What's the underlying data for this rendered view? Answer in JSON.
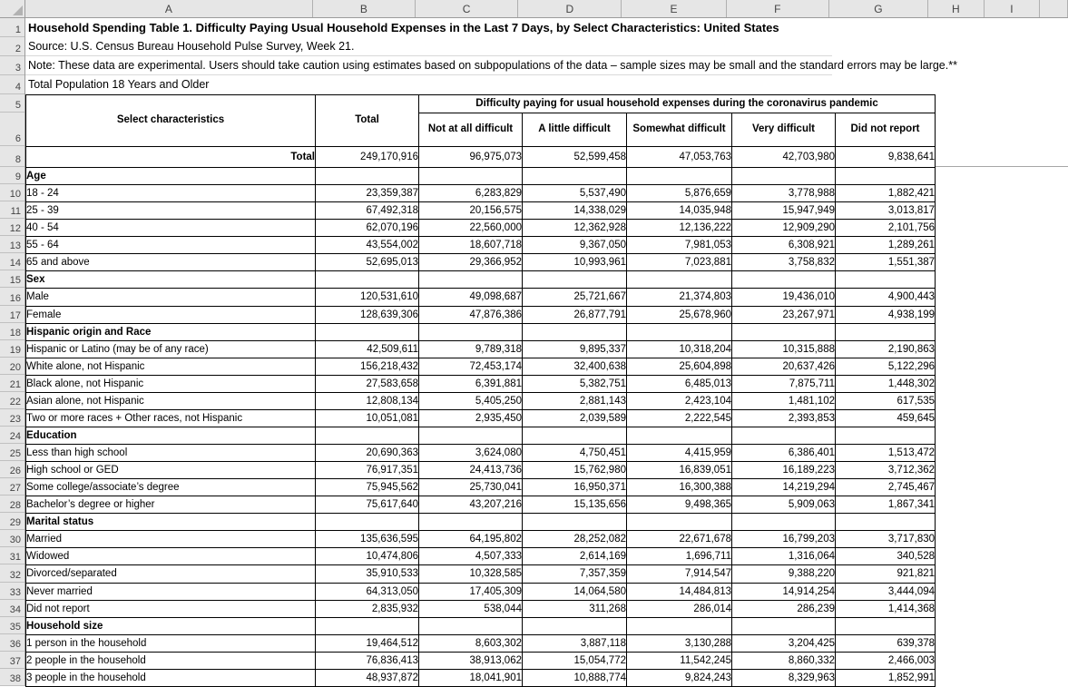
{
  "spreadsheet": {
    "column_letters": [
      "A",
      "B",
      "C",
      "D",
      "E",
      "F",
      "G",
      "H",
      "I"
    ],
    "row_numbers": [
      1,
      2,
      3,
      4,
      5,
      6,
      8,
      9,
      10,
      11,
      12,
      13,
      14,
      15,
      16,
      17,
      18,
      19,
      20,
      21,
      22,
      23,
      24,
      25,
      26,
      27,
      28,
      29,
      30,
      31,
      32,
      33,
      34,
      35,
      36,
      37,
      38
    ]
  },
  "meta": {
    "title": "Household Spending Table 1. Difficulty Paying Usual Household Expenses in the Last 7 Days, by Select Characteristics: United States",
    "source": "Source: U.S. Census Bureau Household Pulse Survey, Week 21.",
    "note": "Note: These data are experimental. Users should take caution using estimates based on subpopulations of the data – sample sizes may be small and the standard errors may be large.**",
    "population": "Total Population 18 Years and Older"
  },
  "table": {
    "col1_header": "Select characteristics",
    "total_header": "Total",
    "span_header": "Difficulty paying for usual household expenses during the coronavirus pandemic",
    "sub_headers": [
      "Not at all difficult",
      "A little difficult",
      "Somewhat difficult",
      "Very difficult",
      "Did not report"
    ],
    "rows": [
      {
        "type": "total",
        "label": "Total",
        "values": [
          "249,170,916",
          "96,975,073",
          "52,599,458",
          "47,053,763",
          "42,703,980",
          "9,838,641"
        ]
      },
      {
        "type": "section",
        "label": "Age"
      },
      {
        "type": "data",
        "label": "18 - 24",
        "values": [
          "23,359,387",
          "6,283,829",
          "5,537,490",
          "5,876,659",
          "3,778,988",
          "1,882,421"
        ]
      },
      {
        "type": "data",
        "label": "25 - 39",
        "values": [
          "67,492,318",
          "20,156,575",
          "14,338,029",
          "14,035,948",
          "15,947,949",
          "3,013,817"
        ]
      },
      {
        "type": "data",
        "label": "40 - 54",
        "values": [
          "62,070,196",
          "22,560,000",
          "12,362,928",
          "12,136,222",
          "12,909,290",
          "2,101,756"
        ]
      },
      {
        "type": "data",
        "label": "55 - 64",
        "values": [
          "43,554,002",
          "18,607,718",
          "9,367,050",
          "7,981,053",
          "6,308,921",
          "1,289,261"
        ]
      },
      {
        "type": "data",
        "label": "65 and above",
        "values": [
          "52,695,013",
          "29,366,952",
          "10,993,961",
          "7,023,881",
          "3,758,832",
          "1,551,387"
        ]
      },
      {
        "type": "section",
        "label": "Sex"
      },
      {
        "type": "data",
        "label": "Male",
        "values": [
          "120,531,610",
          "49,098,687",
          "25,721,667",
          "21,374,803",
          "19,436,010",
          "4,900,443"
        ]
      },
      {
        "type": "data",
        "label": "Female",
        "values": [
          "128,639,306",
          "47,876,386",
          "26,877,791",
          "25,678,960",
          "23,267,971",
          "4,938,199"
        ]
      },
      {
        "type": "section",
        "label": "Hispanic origin and Race"
      },
      {
        "type": "data",
        "label": "Hispanic or Latino (may be of any race)",
        "values": [
          "42,509,611",
          "9,789,318",
          "9,895,337",
          "10,318,204",
          "10,315,888",
          "2,190,863"
        ]
      },
      {
        "type": "data",
        "label": "White alone, not Hispanic",
        "values": [
          "156,218,432",
          "72,453,174",
          "32,400,638",
          "25,604,898",
          "20,637,426",
          "5,122,296"
        ]
      },
      {
        "type": "data",
        "label": "Black alone, not Hispanic",
        "values": [
          "27,583,658",
          "6,391,881",
          "5,382,751",
          "6,485,013",
          "7,875,711",
          "1,448,302"
        ]
      },
      {
        "type": "data",
        "label": "Asian alone, not Hispanic",
        "values": [
          "12,808,134",
          "5,405,250",
          "2,881,143",
          "2,423,104",
          "1,481,102",
          "617,535"
        ]
      },
      {
        "type": "data",
        "label": "Two or more races + Other races, not Hispanic",
        "values": [
          "10,051,081",
          "2,935,450",
          "2,039,589",
          "2,222,545",
          "2,393,853",
          "459,645"
        ]
      },
      {
        "type": "section",
        "label": "Education"
      },
      {
        "type": "data",
        "label": "Less than high school",
        "values": [
          "20,690,363",
          "3,624,080",
          "4,750,451",
          "4,415,959",
          "6,386,401",
          "1,513,472"
        ]
      },
      {
        "type": "data",
        "label": "High school or GED",
        "values": [
          "76,917,351",
          "24,413,736",
          "15,762,980",
          "16,839,051",
          "16,189,223",
          "3,712,362"
        ]
      },
      {
        "type": "data",
        "label": "Some college/associate’s degree",
        "values": [
          "75,945,562",
          "25,730,041",
          "16,950,371",
          "16,300,388",
          "14,219,294",
          "2,745,467"
        ]
      },
      {
        "type": "data",
        "label": "Bachelor’s degree or higher",
        "values": [
          "75,617,640",
          "43,207,216",
          "15,135,656",
          "9,498,365",
          "5,909,063",
          "1,867,341"
        ]
      },
      {
        "type": "section",
        "label": "Marital status"
      },
      {
        "type": "data",
        "label": "Married",
        "values": [
          "135,636,595",
          "64,195,802",
          "28,252,082",
          "22,671,678",
          "16,799,203",
          "3,717,830"
        ]
      },
      {
        "type": "data",
        "label": "Widowed",
        "values": [
          "10,474,806",
          "4,507,333",
          "2,614,169",
          "1,696,711",
          "1,316,064",
          "340,528"
        ]
      },
      {
        "type": "data",
        "label": "Divorced/separated",
        "values": [
          "35,910,533",
          "10,328,585",
          "7,357,359",
          "7,914,547",
          "9,388,220",
          "921,821"
        ]
      },
      {
        "type": "data",
        "label": "Never married",
        "values": [
          "64,313,050",
          "17,405,309",
          "14,064,580",
          "14,484,813",
          "14,914,254",
          "3,444,094"
        ]
      },
      {
        "type": "data",
        "label": "Did not report",
        "values": [
          "2,835,932",
          "538,044",
          "311,268",
          "286,014",
          "286,239",
          "1,414,368"
        ]
      },
      {
        "type": "section",
        "label": "Household size"
      },
      {
        "type": "data",
        "label": "1 person in the household",
        "values": [
          "19,464,512",
          "8,603,302",
          "3,887,118",
          "3,130,288",
          "3,204,425",
          "639,378"
        ]
      },
      {
        "type": "data",
        "label": "2 people in the household",
        "values": [
          "76,836,413",
          "38,913,062",
          "15,054,772",
          "11,542,245",
          "8,860,332",
          "2,466,003"
        ]
      },
      {
        "type": "data",
        "label": "3 people in the household",
        "values": [
          "48,937,872",
          "18,041,901",
          "10,888,774",
          "9,824,243",
          "8,329,963",
          "1,852,991"
        ]
      }
    ]
  },
  "colors": {
    "header_strip_bg": "#e6e6e6",
    "header_strip_text": "#444444",
    "table_border": "#000000",
    "freeze_divider": "#a6a6a6",
    "faint_gridline": "#d9d9d9"
  }
}
